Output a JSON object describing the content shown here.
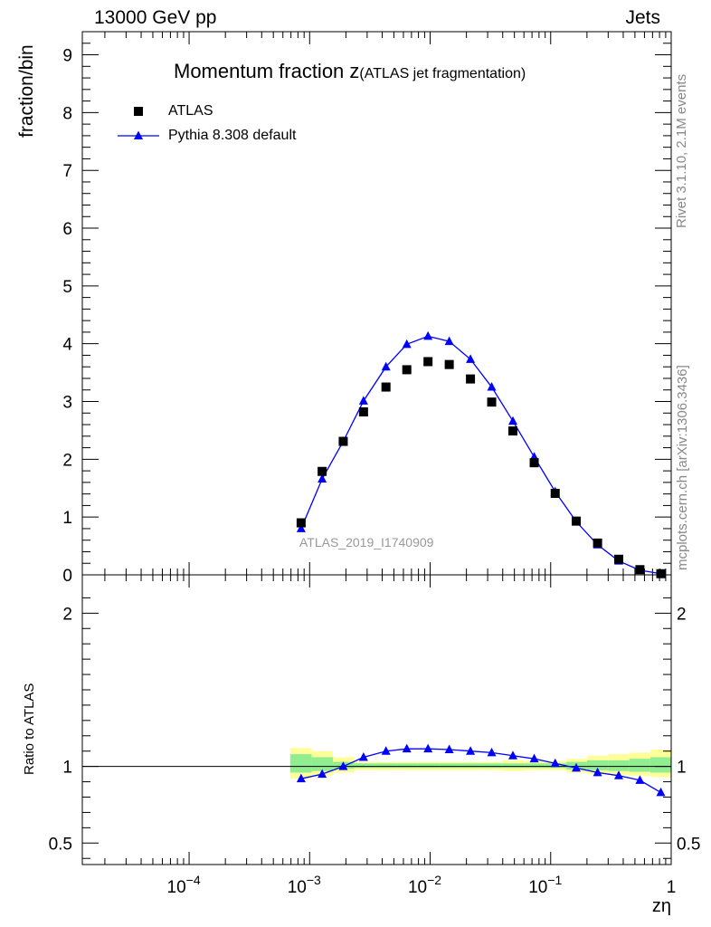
{
  "header": {
    "left": "13000 GeV pp",
    "right": "Jets"
  },
  "title": {
    "main": "Momentum fraction z",
    "sub": "(ATLAS jet fragmentation)"
  },
  "side_labels": {
    "rivet": "Rivet 3.1.10,  2.1M events",
    "mcplots": "mcplots.cern.ch [arXiv:1306.3436]"
  },
  "analysis_id": "ATLAS_2019_I1740909",
  "colors": {
    "data": "#000000",
    "mc": "#0000ff",
    "band_inner": "#90ee90",
    "band_outer": "#ffff99"
  },
  "chart_data": [
    {
      "type": "scatter",
      "panel": "main",
      "title": "Momentum fraction z(ATLAS jet fragmentation)",
      "xlabel": "zη",
      "ylabel": "fraction/bin",
      "xscale": "log",
      "xlim": [
        1.3e-05,
        1
      ],
      "ylim": [
        0,
        9.4
      ],
      "yticks": [
        1,
        2,
        3,
        4,
        5,
        6,
        7,
        8,
        9
      ],
      "xtick_labels": [
        "10",
        "10",
        "10",
        "10",
        "1"
      ],
      "xtick_exponents": [
        "−4",
        "−3",
        "−2",
        "−1",
        ""
      ],
      "legend": {
        "placement": "top-left",
        "entries": [
          "ATLAS",
          "Pythia 8.308 default"
        ]
      },
      "x": [
        0.00085,
        0.00127,
        0.0019,
        0.0028,
        0.0043,
        0.0064,
        0.0096,
        0.0144,
        0.0216,
        0.0324,
        0.0486,
        0.073,
        0.109,
        0.163,
        0.245,
        0.367,
        0.55,
        0.82
      ],
      "series": [
        {
          "name": "ATLAS",
          "marker": "square",
          "values": [
            0.9,
            1.79,
            2.31,
            2.82,
            3.25,
            3.55,
            3.69,
            3.64,
            3.39,
            2.99,
            2.49,
            1.94,
            1.41,
            0.93,
            0.55,
            0.27,
            0.09,
            0.02
          ]
        },
        {
          "name": "Pythia 8.308 default",
          "marker": "triangle",
          "line": true,
          "values": [
            0.8,
            1.66,
            2.31,
            3.01,
            3.6,
            3.99,
            4.13,
            4.04,
            3.73,
            3.25,
            2.66,
            2.04,
            1.44,
            0.92,
            0.52,
            0.24,
            0.08,
            0.02
          ]
        }
      ]
    },
    {
      "type": "scatter",
      "panel": "ratio",
      "ylabel": "Ratio to ATLAS",
      "xlabel": "zη",
      "xscale": "log",
      "xlim": [
        1.3e-05,
        1
      ],
      "ylim": [
        0.36,
        2.25
      ],
      "yticks": [
        0.5,
        1,
        2
      ],
      "ytick_labels": [
        "0.5",
        "1",
        "2"
      ],
      "x": [
        0.00085,
        0.00127,
        0.0019,
        0.0028,
        0.0043,
        0.0064,
        0.0096,
        0.0144,
        0.0216,
        0.0324,
        0.0486,
        0.073,
        0.109,
        0.163,
        0.245,
        0.367,
        0.55,
        0.82
      ],
      "series": [
        {
          "name": "Pythia 8.308 default",
          "values": [
            0.92,
            0.95,
            1.0,
            1.06,
            1.1,
            1.115,
            1.115,
            1.11,
            1.1,
            1.09,
            1.07,
            1.05,
            1.02,
            0.99,
            0.96,
            0.94,
            0.91,
            0.83
          ]
        }
      ],
      "band_edges": [
        0.00069,
        0.00104,
        0.00156,
        0.00234,
        0.0035,
        0.0053,
        0.0079,
        0.0119,
        0.0178,
        0.0267,
        0.04,
        0.06,
        0.09,
        0.135,
        0.2,
        0.3,
        0.45,
        0.67,
        1.0
      ],
      "band_inner": [
        [
          0.96,
          1.08
        ],
        [
          0.97,
          1.06
        ],
        [
          0.985,
          1.03
        ],
        [
          0.99,
          1.02
        ],
        [
          0.99,
          1.02
        ],
        [
          0.99,
          1.02
        ],
        [
          0.99,
          1.02
        ],
        [
          0.99,
          1.02
        ],
        [
          0.99,
          1.02
        ],
        [
          0.99,
          1.02
        ],
        [
          0.99,
          1.02
        ],
        [
          0.99,
          1.02
        ],
        [
          0.99,
          1.02
        ],
        [
          0.98,
          1.03
        ],
        [
          0.975,
          1.04
        ],
        [
          0.97,
          1.04
        ],
        [
          0.965,
          1.05
        ],
        [
          0.96,
          1.06
        ]
      ],
      "band_outer": [
        [
          0.92,
          1.12
        ],
        [
          0.94,
          1.1
        ],
        [
          0.96,
          1.06
        ],
        [
          0.975,
          1.03
        ],
        [
          0.975,
          1.03
        ],
        [
          0.975,
          1.03
        ],
        [
          0.975,
          1.03
        ],
        [
          0.975,
          1.03
        ],
        [
          0.975,
          1.03
        ],
        [
          0.975,
          1.03
        ],
        [
          0.97,
          1.04
        ],
        [
          0.975,
          1.035
        ],
        [
          0.975,
          1.035
        ],
        [
          0.96,
          1.05
        ],
        [
          0.95,
          1.07
        ],
        [
          0.945,
          1.08
        ],
        [
          0.94,
          1.09
        ],
        [
          0.93,
          1.11
        ]
      ]
    }
  ]
}
